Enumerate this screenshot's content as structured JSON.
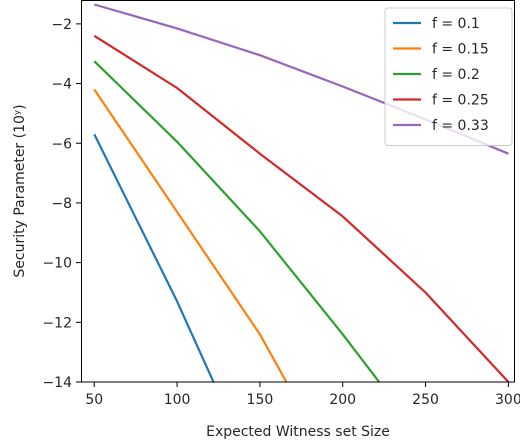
{
  "chart_data": {
    "type": "line",
    "title": "",
    "xlabel": "Expected Witness set Size",
    "ylabel": "Security Parameter (10ʸ)",
    "xlim": [
      42,
      304
    ],
    "ylim": [
      -14,
      -1.2
    ],
    "xticks": [
      50,
      100,
      150,
      200,
      250,
      300
    ],
    "yticks": [
      -2,
      -4,
      -6,
      -8,
      -10,
      -12,
      -14
    ],
    "xtick_labels": [
      "50",
      "100",
      "150",
      "200",
      "250",
      "300"
    ],
    "ytick_labels": [
      "−2",
      "−4",
      "−6",
      "−8",
      "−10",
      "−12",
      "−14"
    ],
    "grid": false,
    "legend_position": "top-right",
    "series": [
      {
        "name": "f = 0.1",
        "color": "#1f77b4",
        "x": [
          50,
          100,
          122
        ],
        "y": [
          -5.7,
          -11.3,
          -14
        ]
      },
      {
        "name": "f = 0.15",
        "color": "#ff7f0e",
        "x": [
          50,
          100,
          150,
          166
        ],
        "y": [
          -4.2,
          -8.3,
          -12.4,
          -14
        ]
      },
      {
        "name": "f = 0.2",
        "color": "#2ca02c",
        "x": [
          50,
          100,
          150,
          200,
          222
        ],
        "y": [
          -3.25,
          -5.95,
          -8.95,
          -12.4,
          -14
        ]
      },
      {
        "name": "f = 0.25",
        "color": "#d62728",
        "x": [
          50,
          100,
          150,
          200,
          250,
          300
        ],
        "y": [
          -2.4,
          -4.15,
          -6.35,
          -8.45,
          -11.0,
          -14
        ]
      },
      {
        "name": "f = 0.33",
        "color": "#9467bd",
        "x": [
          50,
          100,
          150,
          200,
          250,
          300
        ],
        "y": [
          -1.35,
          -2.15,
          -3.05,
          -4.1,
          -5.2,
          -6.35
        ]
      }
    ]
  }
}
